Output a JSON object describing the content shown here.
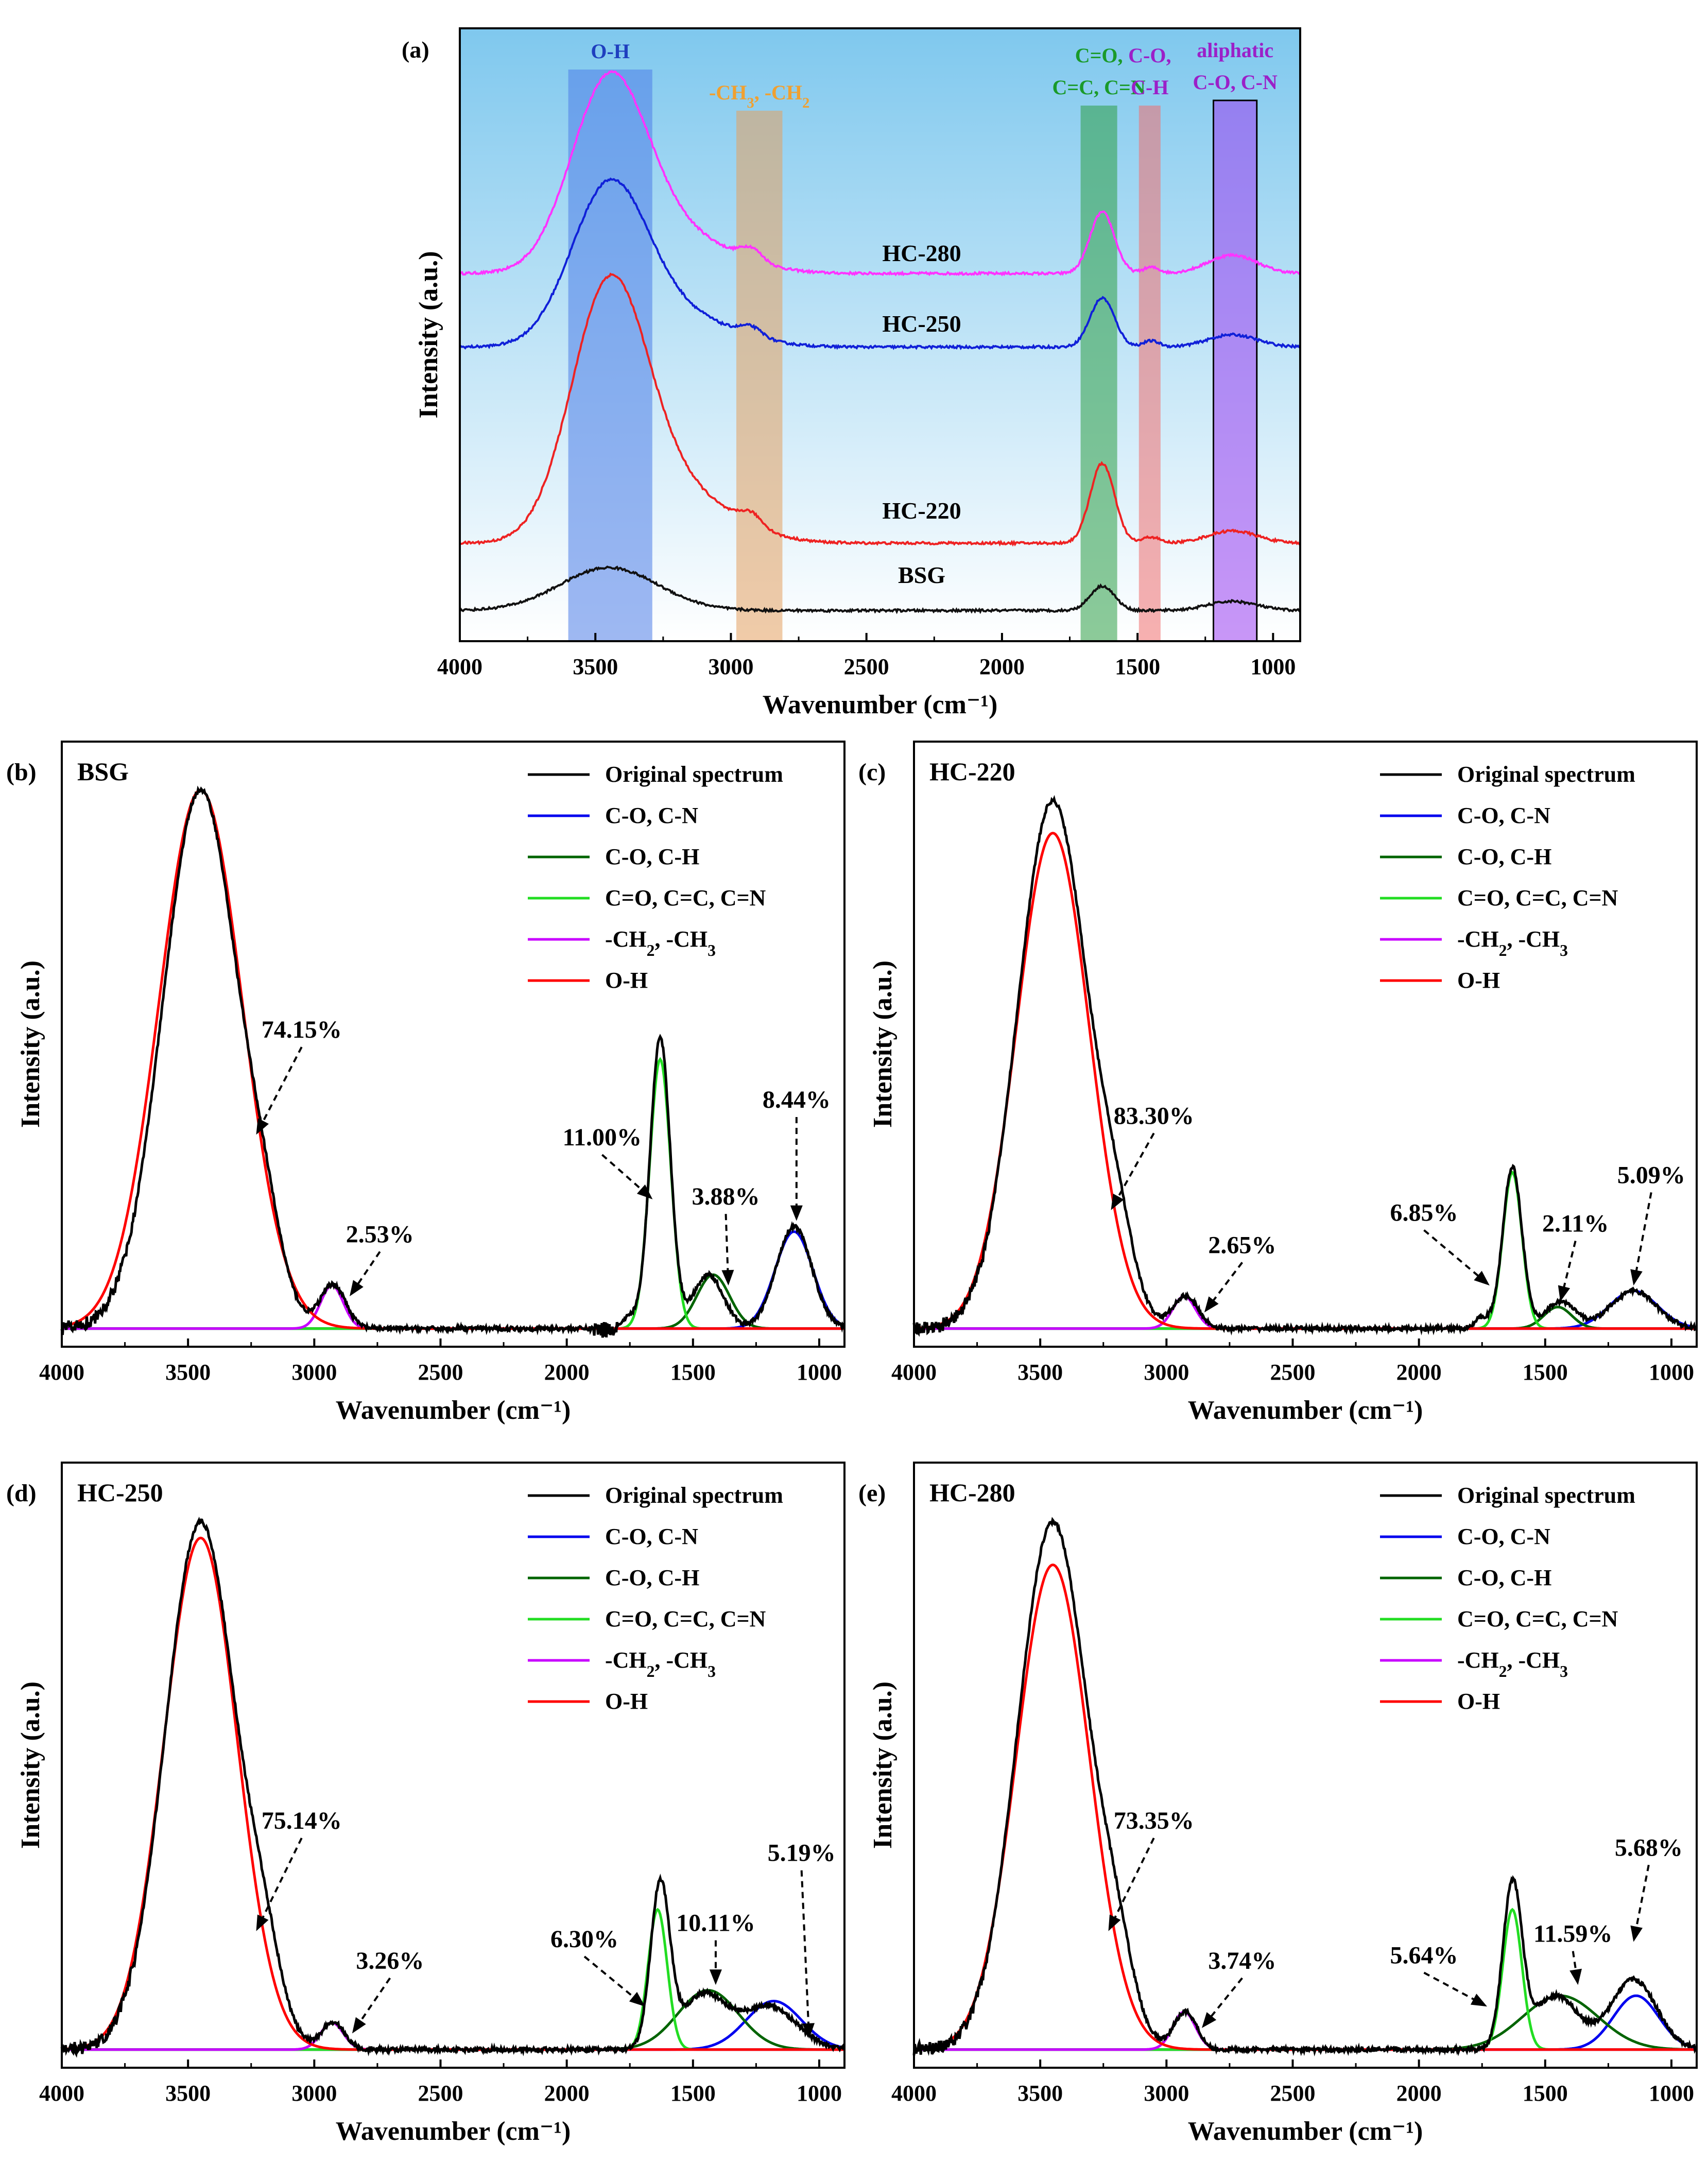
{
  "chart_data": [
    {
      "id": "a",
      "type": "line",
      "panel_label": "(a)",
      "xlabel": "Wavenumber (cm⁻¹)",
      "ylabel": "Intensity (a.u.)",
      "xlim": [
        4000,
        900
      ],
      "ylim": [
        0,
        1
      ],
      "xticks": [
        4000,
        3500,
        3000,
        2500,
        2000,
        1500,
        1000
      ],
      "bands": [
        {
          "range": [
            3600,
            3290
          ],
          "color": "#4f7ee8",
          "label_lines": [
            "O-H"
          ],
          "label_color": "#1f3fbf"
        },
        {
          "range": [
            2980,
            2810
          ],
          "color": "#e4a060",
          "label_lines": [
            "-CH3, -CH2"
          ],
          "label_color": "#f0a030"
        },
        {
          "range": [
            1710,
            1575
          ],
          "color": "#2e9e45",
          "label_lines": [
            "C=O,",
            "C=C, C=N"
          ],
          "label_color": "#1a9a2a"
        },
        {
          "range": [
            1495,
            1415
          ],
          "color": "#f07070",
          "label_lines": [
            "C-O,",
            "C-H"
          ],
          "label_color": "#9b20c8"
        },
        {
          "range": [
            1220,
            1060
          ],
          "color": "#9a40f0",
          "label_lines": [
            "aliphatic",
            "C-O, C-N"
          ],
          "label_color": "#9b20c8"
        }
      ],
      "series": [
        {
          "name": "HC-280",
          "color": "#ff33ff",
          "baseline": 0.6,
          "peaks": [
            [
              3450,
              0.3,
              140
            ],
            [
              3200,
              0.06,
              200
            ],
            [
              2925,
              0.02,
              40
            ],
            [
              1630,
              0.1,
              45
            ],
            [
              1450,
              0.01,
              30
            ],
            [
              1150,
              0.03,
              90
            ]
          ]
        },
        {
          "name": "HC-250",
          "color": "#1020d8",
          "baseline": 0.48,
          "peaks": [
            [
              3450,
              0.25,
              140
            ],
            [
              3200,
              0.05,
              200
            ],
            [
              2925,
              0.015,
              40
            ],
            [
              1630,
              0.08,
              45
            ],
            [
              1450,
              0.01,
              30
            ],
            [
              1150,
              0.02,
              90
            ]
          ]
        },
        {
          "name": "HC-220",
          "color": "#ee2222",
          "baseline": 0.16,
          "peaks": [
            [
              3450,
              0.4,
              140
            ],
            [
              3200,
              0.08,
              200
            ],
            [
              2925,
              0.02,
              40
            ],
            [
              1630,
              0.13,
              45
            ],
            [
              1450,
              0.01,
              30
            ],
            [
              1150,
              0.02,
              90
            ]
          ]
        },
        {
          "name": "BSG",
          "color": "#111111",
          "baseline": 0.05,
          "peaks": [
            [
              3450,
              0.07,
              180
            ],
            [
              1630,
              0.04,
              45
            ],
            [
              1150,
              0.015,
              90
            ]
          ]
        }
      ]
    },
    {
      "id": "b",
      "type": "line",
      "panel_label": "(b)",
      "sample": "BSG",
      "xlabel": "Wavenumber (cm⁻¹)",
      "ylabel": "Intensity (a.u.)",
      "xlim": [
        4000,
        900
      ],
      "ylim": [
        0,
        1
      ],
      "xticks": [
        4000,
        3500,
        3000,
        2500,
        2000,
        1500,
        1000
      ],
      "original": [
        [
          3450,
          1.0,
          150
        ],
        [
          3200,
          0.1,
          70
        ],
        [
          2925,
          0.08,
          50
        ],
        [
          1630,
          0.54,
          40
        ],
        [
          1750,
          0.02,
          30
        ],
        [
          1440,
          0.1,
          60
        ],
        [
          1100,
          0.19,
          70
        ]
      ],
      "components": [
        {
          "label": "O-H",
          "color": "#ff0000",
          "center": 3450,
          "amp": 1.0,
          "sigma": 165
        },
        {
          "label": "-CH2, -CH3",
          "color": "#c800ff",
          "center": 2930,
          "amp": 0.08,
          "sigma": 45
        },
        {
          "label": "C=O, C=C, C=N",
          "color": "#22dd22",
          "center": 1630,
          "amp": 0.5,
          "sigma": 42
        },
        {
          "label": "C-O, C-H",
          "color": "#006400",
          "center": 1420,
          "amp": 0.1,
          "sigma": 65
        },
        {
          "label": "C-O, C-N",
          "color": "#0000ee",
          "center": 1100,
          "amp": 0.18,
          "sigma": 75
        }
      ],
      "annotations": [
        {
          "text": "74.15%",
          "x": 3050,
          "y": 0.54,
          "ax": 3230,
          "ay": 0.36
        },
        {
          "text": "2.53%",
          "x": 2740,
          "y": 0.16,
          "ax": 2860,
          "ay": 0.06
        },
        {
          "text": "11.00%",
          "x": 1860,
          "y": 0.34,
          "ax": 1660,
          "ay": 0.24
        },
        {
          "text": "3.88%",
          "x": 1370,
          "y": 0.23,
          "ax": 1360,
          "ay": 0.08
        },
        {
          "text": "8.44%",
          "x": 1090,
          "y": 0.41,
          "ax": 1090,
          "ay": 0.2
        }
      ]
    },
    {
      "id": "c",
      "type": "line",
      "panel_label": "(c)",
      "sample": "HC-220",
      "xlabel": "Wavenumber (cm⁻¹)",
      "ylabel": "Intensity (a.u.)",
      "xlim": [
        4000,
        900
      ],
      "ylim": [
        0,
        1
      ],
      "xticks": [
        4000,
        3500,
        3000,
        2500,
        2000,
        1500,
        1000
      ],
      "original": [
        [
          3450,
          0.98,
          140
        ],
        [
          3200,
          0.12,
          70
        ],
        [
          2925,
          0.06,
          50
        ],
        [
          1630,
          0.3,
          38
        ],
        [
          1750,
          0.02,
          30
        ],
        [
          1440,
          0.05,
          60
        ],
        [
          1150,
          0.07,
          90
        ]
      ],
      "components": [
        {
          "label": "O-H",
          "color": "#ff0000",
          "center": 3450,
          "amp": 0.92,
          "sigma": 145
        },
        {
          "label": "-CH2, -CH3",
          "color": "#c800ff",
          "center": 2930,
          "amp": 0.06,
          "sigma": 45
        },
        {
          "label": "C=O, C=C, C=N",
          "color": "#22dd22",
          "center": 1630,
          "amp": 0.29,
          "sigma": 38
        },
        {
          "label": "C-O, C-H",
          "color": "#006400",
          "center": 1450,
          "amp": 0.04,
          "sigma": 55
        },
        {
          "label": "C-O, C-N",
          "color": "#0000ee",
          "center": 1150,
          "amp": 0.07,
          "sigma": 95
        }
      ],
      "annotations": [
        {
          "text": "83.30%",
          "x": 3050,
          "y": 0.38,
          "ax": 3220,
          "ay": 0.22
        },
        {
          "text": "2.65%",
          "x": 2700,
          "y": 0.14,
          "ax": 2850,
          "ay": 0.03
        },
        {
          "text": "6.85%",
          "x": 1980,
          "y": 0.2,
          "ax": 1720,
          "ay": 0.08
        },
        {
          "text": "2.11%",
          "x": 1380,
          "y": 0.18,
          "ax": 1440,
          "ay": 0.05
        },
        {
          "text": "5.09%",
          "x": 1080,
          "y": 0.27,
          "ax": 1150,
          "ay": 0.08
        }
      ]
    },
    {
      "id": "d",
      "type": "line",
      "panel_label": "(d)",
      "sample": "HC-250",
      "xlabel": "Wavenumber (cm⁻¹)",
      "ylabel": "Intensity (a.u.)",
      "xlim": [
        4000,
        900
      ],
      "ylim": [
        0,
        1
      ],
      "xticks": [
        4000,
        3500,
        3000,
        2500,
        2000,
        1500,
        1000
      ],
      "original": [
        [
          3450,
          0.98,
          140
        ],
        [
          3200,
          0.12,
          70
        ],
        [
          2925,
          0.05,
          45
        ],
        [
          1630,
          0.3,
          38
        ],
        [
          1460,
          0.1,
          90
        ],
        [
          1200,
          0.08,
          110
        ]
      ],
      "components": [
        {
          "label": "O-H",
          "color": "#ff0000",
          "center": 3450,
          "amp": 0.95,
          "sigma": 145
        },
        {
          "label": "-CH2, -CH3",
          "color": "#c800ff",
          "center": 2930,
          "amp": 0.05,
          "sigma": 45
        },
        {
          "label": "C=O, C=C, C=N",
          "color": "#22dd22",
          "center": 1640,
          "amp": 0.26,
          "sigma": 38
        },
        {
          "label": "C-O, C-H",
          "color": "#006400",
          "center": 1440,
          "amp": 0.11,
          "sigma": 120
        },
        {
          "label": "C-O, C-N",
          "color": "#0000ee",
          "center": 1180,
          "amp": 0.09,
          "sigma": 110
        }
      ],
      "annotations": [
        {
          "text": "75.14%",
          "x": 3050,
          "y": 0.41,
          "ax": 3230,
          "ay": 0.22
        },
        {
          "text": "3.26%",
          "x": 2700,
          "y": 0.15,
          "ax": 2850,
          "ay": 0.03
        },
        {
          "text": "6.30%",
          "x": 1930,
          "y": 0.19,
          "ax": 1690,
          "ay": 0.08
        },
        {
          "text": "10.11%",
          "x": 1410,
          "y": 0.22,
          "ax": 1410,
          "ay": 0.12
        },
        {
          "text": "5.19%",
          "x": 1070,
          "y": 0.35,
          "ax": 1040,
          "ay": 0.02
        }
      ]
    },
    {
      "id": "e",
      "type": "line",
      "panel_label": "(e)",
      "sample": "HC-280",
      "xlabel": "Wavenumber (cm⁻¹)",
      "ylabel": "Intensity (a.u.)",
      "xlim": [
        4000,
        900
      ],
      "ylim": [
        0,
        1
      ],
      "xticks": [
        4000,
        3500,
        3000,
        2500,
        2000,
        1500,
        1000
      ],
      "original": [
        [
          3450,
          0.98,
          140
        ],
        [
          3200,
          0.12,
          70
        ],
        [
          2925,
          0.07,
          45
        ],
        [
          1630,
          0.3,
          38
        ],
        [
          1460,
          0.1,
          90
        ],
        [
          1150,
          0.13,
          90
        ]
      ],
      "components": [
        {
          "label": "O-H",
          "color": "#ff0000",
          "center": 3450,
          "amp": 0.9,
          "sigma": 145
        },
        {
          "label": "-CH2, -CH3",
          "color": "#c800ff",
          "center": 2930,
          "amp": 0.07,
          "sigma": 45
        },
        {
          "label": "C=O, C=C, C=N",
          "color": "#22dd22",
          "center": 1630,
          "amp": 0.26,
          "sigma": 38
        },
        {
          "label": "C-O, C-H",
          "color": "#006400",
          "center": 1440,
          "amp": 0.1,
          "sigma": 150
        },
        {
          "label": "C-O, C-N",
          "color": "#0000ee",
          "center": 1140,
          "amp": 0.1,
          "sigma": 90
        }
      ],
      "annotations": [
        {
          "text": "73.35%",
          "x": 3050,
          "y": 0.41,
          "ax": 3230,
          "ay": 0.22
        },
        {
          "text": "3.74%",
          "x": 2700,
          "y": 0.15,
          "ax": 2860,
          "ay": 0.04
        },
        {
          "text": "5.64%",
          "x": 1980,
          "y": 0.16,
          "ax": 1730,
          "ay": 0.08
        },
        {
          "text": "11.59%",
          "x": 1390,
          "y": 0.2,
          "ax": 1370,
          "ay": 0.12
        },
        {
          "text": "5.68%",
          "x": 1090,
          "y": 0.36,
          "ax": 1150,
          "ay": 0.2
        }
      ]
    }
  ],
  "legend": {
    "entries": [
      {
        "label": "Original spectrum",
        "color": "#000000"
      },
      {
        "label": "C-O, C-N",
        "color": "#0000ee"
      },
      {
        "label": "C-O, C-H",
        "color": "#006400"
      },
      {
        "label": "C=O, C=C, C=N",
        "color": "#22dd22"
      },
      {
        "label": "-CH2, -CH3",
        "color": "#c800ff"
      },
      {
        "label": "O-H",
        "color": "#ff0000"
      }
    ]
  }
}
